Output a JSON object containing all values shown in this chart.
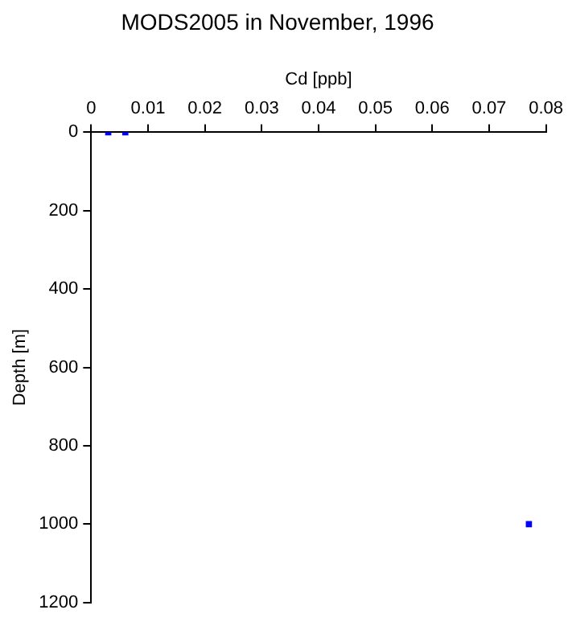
{
  "chart_data": {
    "type": "scatter",
    "title": "MODS2005 in November, 1996",
    "xlabel": "Cd [ppb]",
    "ylabel": "Depth [m]",
    "x": [
      0.003,
      0.006,
      0.077
    ],
    "series": [
      {
        "color": "#0000ff",
        "values": [
          0,
          0,
          1000
        ]
      }
    ],
    "xlim": [
      0,
      0.08
    ],
    "xticks": [
      0,
      0.01,
      0.02,
      0.03,
      0.04,
      0.05,
      0.06,
      0.07,
      0.08
    ],
    "ylim": [
      1200,
      0
    ],
    "yticks": [
      0,
      200,
      400,
      600,
      800,
      1000,
      1200
    ],
    "grid": false,
    "legend": false,
    "marker": "square"
  }
}
